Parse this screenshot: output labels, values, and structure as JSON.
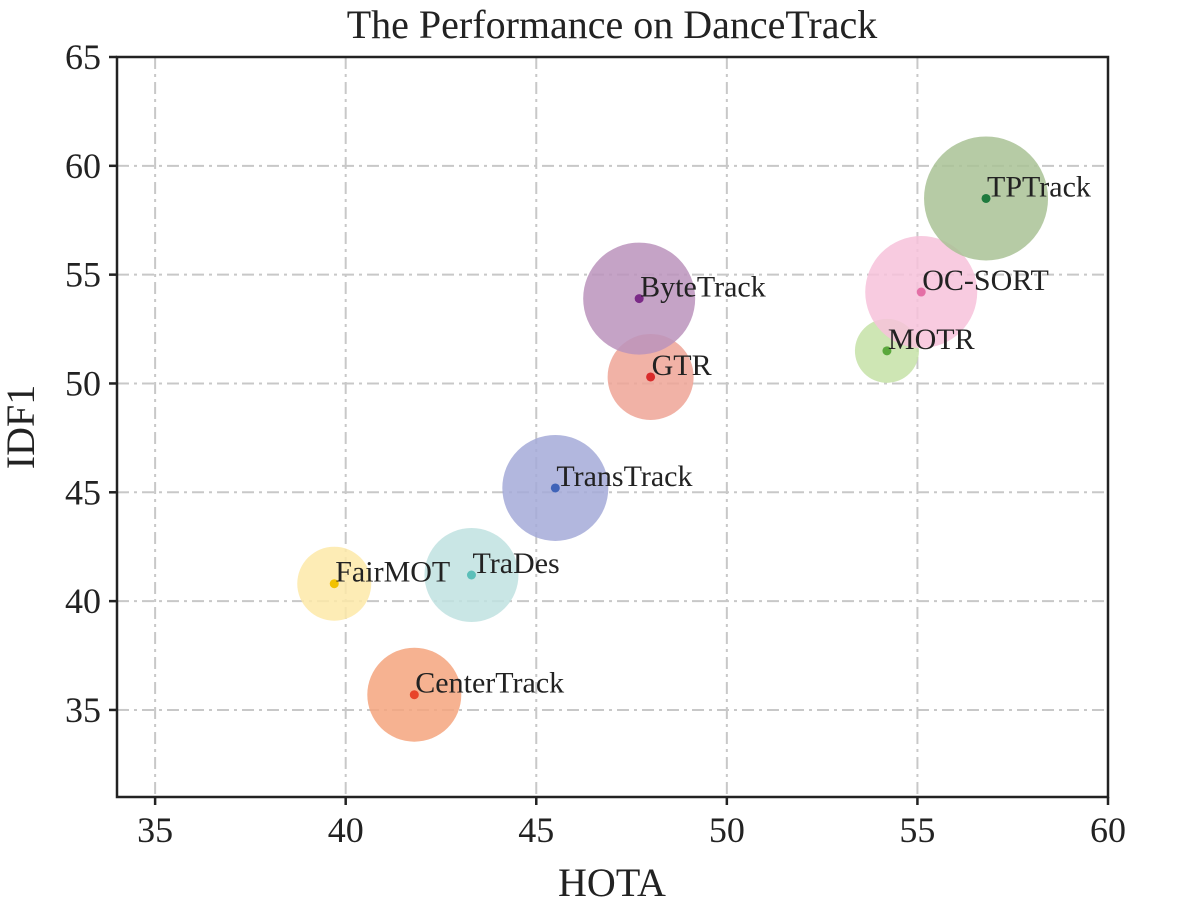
{
  "chart_data": {
    "type": "scatter",
    "title": "The Performance on DanceTrack",
    "xlabel": "HOTA",
    "ylabel": "IDF1",
    "xlim": [
      34,
      60
    ],
    "ylim": [
      31,
      65
    ],
    "xticks": [
      35,
      40,
      45,
      50,
      55,
      60
    ],
    "yticks": [
      35,
      40,
      45,
      50,
      55,
      60,
      65
    ],
    "grid": true,
    "points": [
      {
        "name": "CenterTrack",
        "x": 41.8,
        "y": 35.7,
        "color": "#e8452a",
        "bubble": "#f5a47e"
      },
      {
        "name": "FairMOT",
        "x": 39.7,
        "y": 40.8,
        "color": "#f2c200",
        "bubble": "#fde9a8"
      },
      {
        "name": "TraDes",
        "x": 43.3,
        "y": 41.2,
        "color": "#5bbfb9",
        "bubble": "#bfe2e0"
      },
      {
        "name": "TransTrack",
        "x": 45.5,
        "y": 45.2,
        "color": "#3f63b8",
        "bubble": "#a4aad8"
      },
      {
        "name": "GTR",
        "x": 48.0,
        "y": 50.3,
        "color": "#d92b2b",
        "bubble": "#efa496"
      },
      {
        "name": "ByteTrack",
        "x": 47.7,
        "y": 53.9,
        "color": "#7b2a87",
        "bubble": "#bb93bc"
      },
      {
        "name": "MOTR",
        "x": 54.2,
        "y": 51.5,
        "color": "#5aa83c",
        "bubble": "#c6e2a7"
      },
      {
        "name": "OC-SORT",
        "x": 55.1,
        "y": 54.2,
        "color": "#e46fa6",
        "bubble": "#f7c2db"
      },
      {
        "name": "TPTrack",
        "x": 56.8,
        "y": 58.5,
        "color": "#1e7a3d",
        "bubble": "#a9c295"
      }
    ]
  }
}
